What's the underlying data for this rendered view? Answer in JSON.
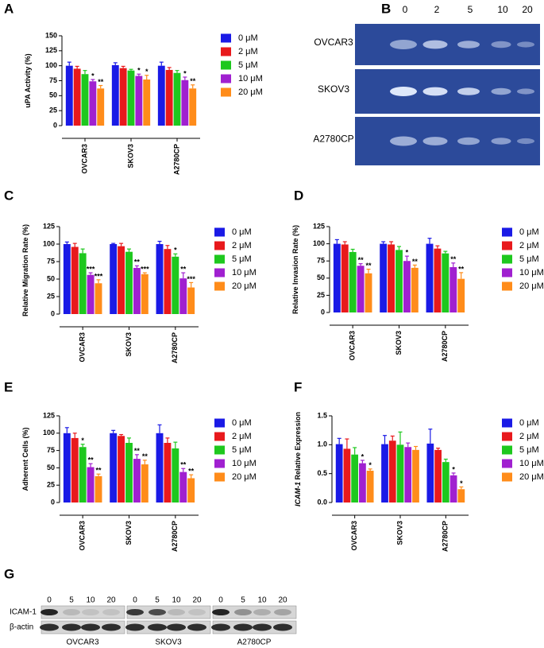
{
  "chart_data": [
    {
      "type": "bar",
      "panel": "A",
      "y_label": "uPA Activity (%)",
      "categories": [
        "OVCAR3",
        "SKOV3",
        "A2780CP"
      ],
      "ylim": [
        0,
        150
      ],
      "yticks": [
        0,
        25,
        50,
        75,
        100,
        125,
        150
      ],
      "legend": "right",
      "series": [
        {
          "name": "0 μM",
          "color": "#1a1ae6",
          "values": [
            100,
            101,
            100
          ],
          "errors": [
            6,
            4,
            6
          ],
          "significance": [
            null,
            null,
            null
          ]
        },
        {
          "name": "2 μM",
          "color": "#e8191c",
          "values": [
            95,
            96,
            93
          ],
          "errors": [
            4,
            3,
            4
          ],
          "significance": [
            null,
            null,
            null
          ]
        },
        {
          "name": "5 μM",
          "color": "#1ec81e",
          "values": [
            86,
            92,
            88
          ],
          "errors": [
            6,
            2,
            4
          ],
          "significance": [
            null,
            null,
            null
          ]
        },
        {
          "name": "10 μM",
          "color": "#a020d0",
          "values": [
            74,
            83,
            76
          ],
          "errors": [
            3,
            3,
            5
          ],
          "significance": [
            "*",
            "*",
            "*"
          ]
        },
        {
          "name": "20 μM",
          "color": "#ff8c1a",
          "values": [
            62,
            77,
            62
          ],
          "errors": [
            5,
            7,
            6
          ],
          "significance": [
            "**",
            "*",
            "**"
          ]
        }
      ]
    },
    {
      "type": "bar",
      "panel": "C",
      "y_label": "Relative Migration Rate (%)",
      "categories": [
        "OVCAR3",
        "SKOV3",
        "A2780CP"
      ],
      "ylim": [
        0,
        125
      ],
      "yticks": [
        0,
        25,
        50,
        75,
        100,
        125
      ],
      "legend": "right",
      "series": [
        {
          "name": "0 μM",
          "color": "#1a1ae6",
          "values": [
            100,
            100,
            100
          ],
          "errors": [
            3,
            1,
            4
          ],
          "significance": [
            null,
            null,
            null
          ]
        },
        {
          "name": "2 μM",
          "color": "#e8191c",
          "values": [
            96,
            97,
            93
          ],
          "errors": [
            5,
            4,
            5
          ],
          "significance": [
            null,
            null,
            null
          ]
        },
        {
          "name": "5 μM",
          "color": "#1ec81e",
          "values": [
            87,
            89,
            82
          ],
          "errors": [
            6,
            4,
            4
          ],
          "significance": [
            null,
            null,
            "*"
          ]
        },
        {
          "name": "10 μM",
          "color": "#a020d0",
          "values": [
            56,
            66,
            51
          ],
          "errors": [
            3,
            3,
            8
          ],
          "significance": [
            "***",
            "**",
            "**"
          ]
        },
        {
          "name": "20 μM",
          "color": "#ff8c1a",
          "values": [
            44,
            57,
            38
          ],
          "errors": [
            5,
            2,
            7
          ],
          "significance": [
            "***",
            "***",
            "***"
          ]
        }
      ]
    },
    {
      "type": "bar",
      "panel": "D",
      "y_label": "Relative Invasion Rate (%)",
      "categories": [
        "OVCAR3",
        "SKOV3",
        "A2780CP"
      ],
      "ylim": [
        0,
        125
      ],
      "yticks": [
        0,
        25,
        50,
        75,
        100,
        125
      ],
      "legend": "right",
      "series": [
        {
          "name": "0 μM",
          "color": "#1a1ae6",
          "values": [
            100,
            100,
            100
          ],
          "errors": [
            6,
            3,
            8
          ],
          "significance": [
            null,
            null,
            null
          ]
        },
        {
          "name": "2 μM",
          "color": "#e8191c",
          "values": [
            99,
            99,
            93
          ],
          "errors": [
            4,
            4,
            4
          ],
          "significance": [
            null,
            null,
            null
          ]
        },
        {
          "name": "5 μM",
          "color": "#1ec81e",
          "values": [
            88,
            91,
            86
          ],
          "errors": [
            4,
            5,
            3
          ],
          "significance": [
            null,
            null,
            null
          ]
        },
        {
          "name": "10 μM",
          "color": "#a020d0",
          "values": [
            68,
            75,
            66
          ],
          "errors": [
            3,
            7,
            6
          ],
          "significance": [
            "**",
            "*",
            "**"
          ]
        },
        {
          "name": "20 μM",
          "color": "#ff8c1a",
          "values": [
            57,
            65,
            49
          ],
          "errors": [
            6,
            4,
            9
          ],
          "significance": [
            "**",
            "**",
            "**"
          ]
        }
      ]
    },
    {
      "type": "bar",
      "panel": "E",
      "y_label": "Adherent Cells (%)",
      "categories": [
        "OVCAR3",
        "SKOV3",
        "A2780CP"
      ],
      "ylim": [
        0,
        125
      ],
      "yticks": [
        0,
        25,
        50,
        75,
        100,
        125
      ],
      "legend": "right",
      "series": [
        {
          "name": "0 μM",
          "color": "#1a1ae6",
          "values": [
            100,
            100,
            100
          ],
          "errors": [
            8,
            4,
            12
          ],
          "significance": [
            null,
            null,
            null
          ]
        },
        {
          "name": "2 μM",
          "color": "#e8191c",
          "values": [
            93,
            96,
            86
          ],
          "errors": [
            7,
            2,
            7
          ],
          "significance": [
            null,
            null,
            null
          ]
        },
        {
          "name": "5 μM",
          "color": "#1ec81e",
          "values": [
            80,
            86,
            78
          ],
          "errors": [
            4,
            7,
            9
          ],
          "significance": [
            "*",
            null,
            null
          ]
        },
        {
          "name": "10 μM",
          "color": "#a020d0",
          "values": [
            51,
            63,
            44
          ],
          "errors": [
            5,
            6,
            5
          ],
          "significance": [
            "**",
            "**",
            "**"
          ]
        },
        {
          "name": "20 μM",
          "color": "#ff8c1a",
          "values": [
            38,
            55,
            35
          ],
          "errors": [
            3,
            6,
            5
          ],
          "significance": [
            "**",
            "**",
            "**"
          ]
        }
      ]
    },
    {
      "type": "bar",
      "panel": "F",
      "y_label_gene": "ICAM-1",
      "y_label": " Relative Expression",
      "categories": [
        "OVCAR3",
        "SKOV3",
        "A2780CP"
      ],
      "ylim": [
        0,
        1.5
      ],
      "yticks": [
        {
          "value": 0,
          "label": "0.0"
        },
        {
          "value": 0.5,
          "label": "0.5"
        },
        {
          "value": 1,
          "label": "1.0"
        },
        {
          "value": 1.5,
          "label": "1.5"
        }
      ],
      "legend": "right",
      "series": [
        {
          "name": "0 μM",
          "color": "#1a1ae6",
          "values": [
            1.01,
            1.01,
            1.02
          ],
          "errors": [
            0.1,
            0.15,
            0.25
          ],
          "significance": [
            null,
            null,
            null
          ]
        },
        {
          "name": "2 μM",
          "color": "#e8191c",
          "values": [
            0.93,
            1.07,
            0.91
          ],
          "errors": [
            0.17,
            0.08,
            0.03
          ],
          "significance": [
            null,
            null,
            null
          ]
        },
        {
          "name": "5 μM",
          "color": "#1ec81e",
          "values": [
            0.83,
            1.0,
            0.7
          ],
          "errors": [
            0.12,
            0.22,
            0.05
          ],
          "significance": [
            null,
            null,
            null
          ]
        },
        {
          "name": "10 μM",
          "color": "#a020d0",
          "values": [
            0.68,
            0.96,
            0.47
          ],
          "errors": [
            0.05,
            0.07,
            0.04
          ],
          "significance": [
            "*",
            null,
            "*"
          ]
        },
        {
          "name": "20 μM",
          "color": "#ff8c1a",
          "values": [
            0.55,
            0.91,
            0.23
          ],
          "errors": [
            0.03,
            0.06,
            0.04
          ],
          "significance": [
            "*",
            null,
            "*"
          ]
        }
      ]
    }
  ],
  "gel": {
    "panel": "B",
    "lanes": [
      "0",
      "2",
      "5",
      "10",
      "20"
    ],
    "rows": [
      "OVCAR3",
      "SKOV3",
      "A2780CP"
    ]
  },
  "blot": {
    "panel": "G",
    "lanes": [
      "0",
      "5",
      "10",
      "20"
    ],
    "proteins": [
      "ICAM-1",
      "β-actin"
    ],
    "cell_lines": [
      "OVCAR3",
      "SKOV3",
      "A2780CP"
    ]
  }
}
